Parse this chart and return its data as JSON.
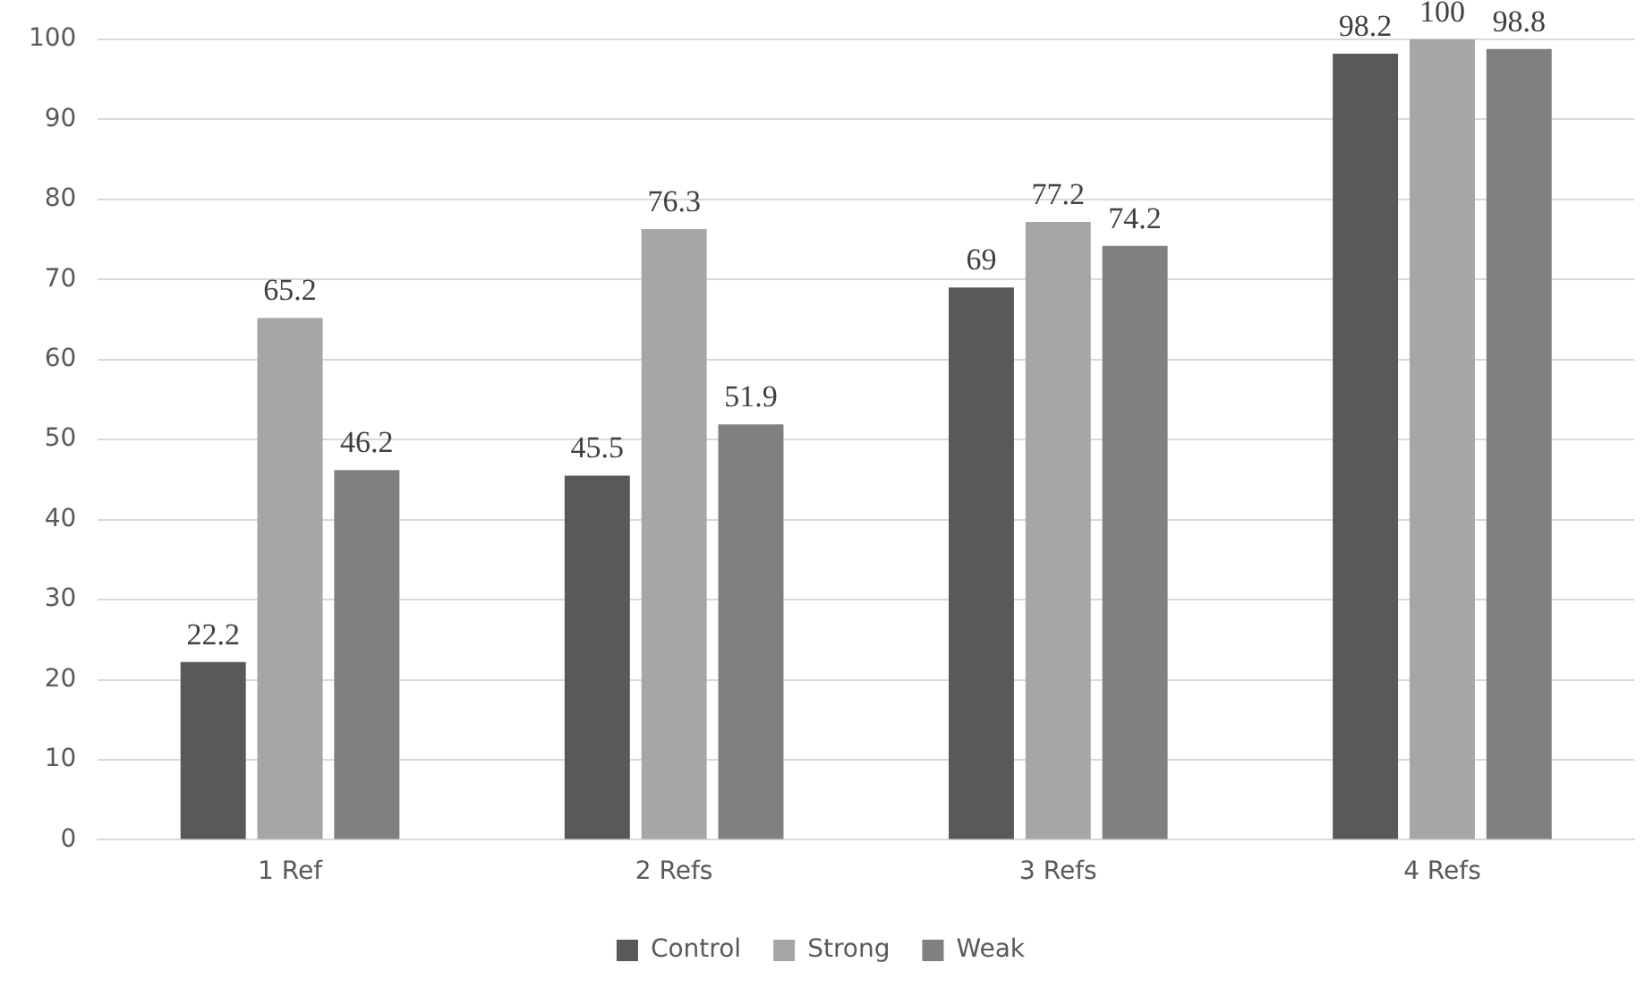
{
  "chart_data": {
    "type": "bar",
    "categories": [
      "1 Ref",
      "2 Refs",
      "3 Refs",
      "4 Refs"
    ],
    "series": [
      {
        "name": "Control",
        "color": "#595959",
        "values": [
          22.2,
          45.5,
          69,
          98.2
        ]
      },
      {
        "name": "Strong",
        "color": "#a6a6a6",
        "values": [
          65.2,
          76.3,
          77.2,
          100
        ]
      },
      {
        "name": "Weak",
        "color": "#808080",
        "values": [
          46.2,
          51.9,
          74.2,
          98.8
        ]
      }
    ],
    "ylim": [
      0,
      100
    ],
    "yticks": [
      0,
      10,
      20,
      30,
      40,
      50,
      60,
      70,
      80,
      90,
      100
    ],
    "grid": "y",
    "legend": "bottom",
    "data_labels": true
  }
}
